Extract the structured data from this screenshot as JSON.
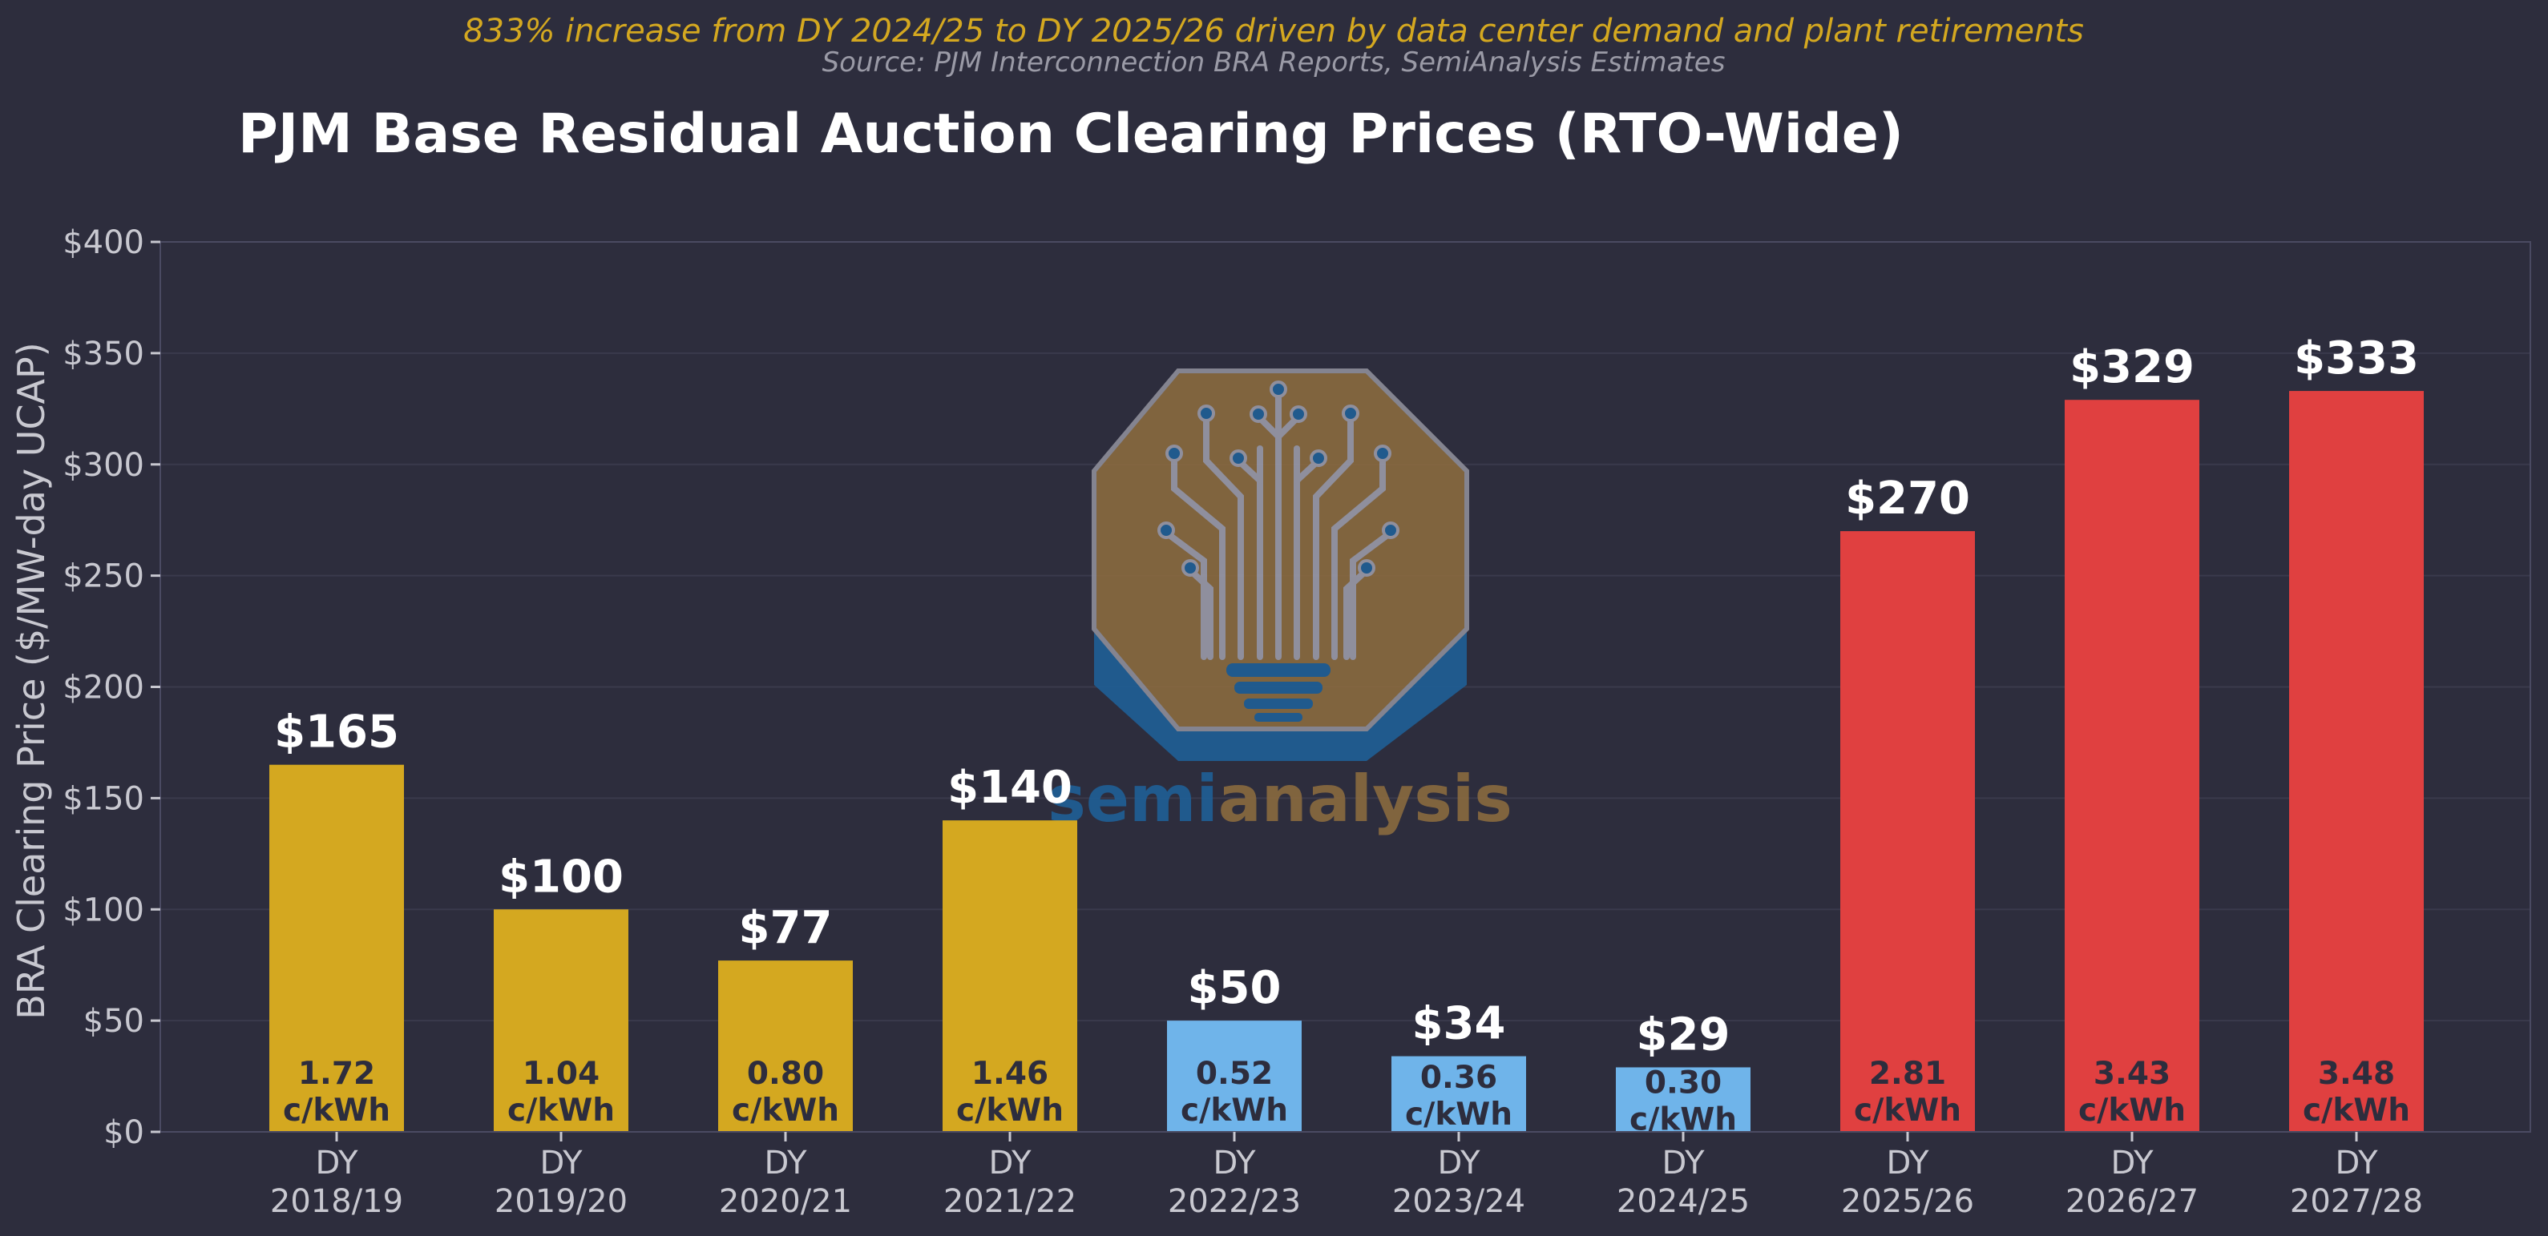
{
  "chart_data": {
    "type": "bar",
    "title": "PJM Base Residual Auction Clearing Prices (RTO-Wide)",
    "subtitle": "833% increase from DY 2024/25 to DY 2025/26 driven by data center demand and plant retirements",
    "source": "Source: PJM Interconnection BRA Reports, SemiAnalysis Estimates",
    "ylabel": "BRA Clearing Price ($/MW-day UCAP)",
    "xlabel": "",
    "ylim": [
      0,
      400
    ],
    "yticks": [
      0,
      50,
      100,
      150,
      200,
      250,
      300,
      350,
      400
    ],
    "ytick_labels": [
      "$0",
      "$50",
      "$100",
      "$150",
      "$200",
      "$250",
      "$300",
      "$350",
      "$400"
    ],
    "grid": true,
    "categories": [
      [
        "DY",
        "2018/19"
      ],
      [
        "DY",
        "2019/20"
      ],
      [
        "DY",
        "2020/21"
      ],
      [
        "DY",
        "2021/22"
      ],
      [
        "DY",
        "2022/23"
      ],
      [
        "DY",
        "2023/24"
      ],
      [
        "DY",
        "2024/25"
      ],
      [
        "DY",
        "2025/26"
      ],
      [
        "DY",
        "2026/27"
      ],
      [
        "DY",
        "2027/28"
      ]
    ],
    "values": [
      165,
      100,
      77,
      140,
      50,
      34,
      29,
      270,
      329,
      333
    ],
    "value_labels": [
      "$165",
      "$100",
      "$77",
      "$140",
      "$50",
      "$34",
      "$29",
      "$270",
      "$329",
      "$333"
    ],
    "inner_labels": [
      [
        "1.72",
        "c/kWh"
      ],
      [
        "1.04",
        "c/kWh"
      ],
      [
        "0.80",
        "c/kWh"
      ],
      [
        "1.46",
        "c/kWh"
      ],
      [
        "0.52",
        "c/kWh"
      ],
      [
        "0.36",
        "c/kWh"
      ],
      [
        "0.30",
        "c/kWh"
      ],
      [
        "2.81",
        "c/kWh"
      ],
      [
        "3.43",
        "c/kWh"
      ],
      [
        "3.48",
        "c/kWh"
      ]
    ],
    "bar_colors": [
      "#d4a820",
      "#d4a820",
      "#d4a820",
      "#d4a820",
      "#6fb4ea",
      "#6fb4ea",
      "#6fb4ea",
      "#e04040",
      "#e04040",
      "#e04040"
    ],
    "colors": {
      "background": "#2d2d3d",
      "title": "#ffffff",
      "subtitle": "#d4a820",
      "source": "#9a9aa6",
      "tick": "#c8c8d0",
      "inner_label": "#2d2d3d",
      "grid": "#3a3a4c",
      "axis": "#4a4a62"
    }
  },
  "watermark": {
    "text_a": "semi",
    "text_b": "analysis",
    "color_a": "#1f5f96",
    "color_b": "#8a6a3f"
  }
}
